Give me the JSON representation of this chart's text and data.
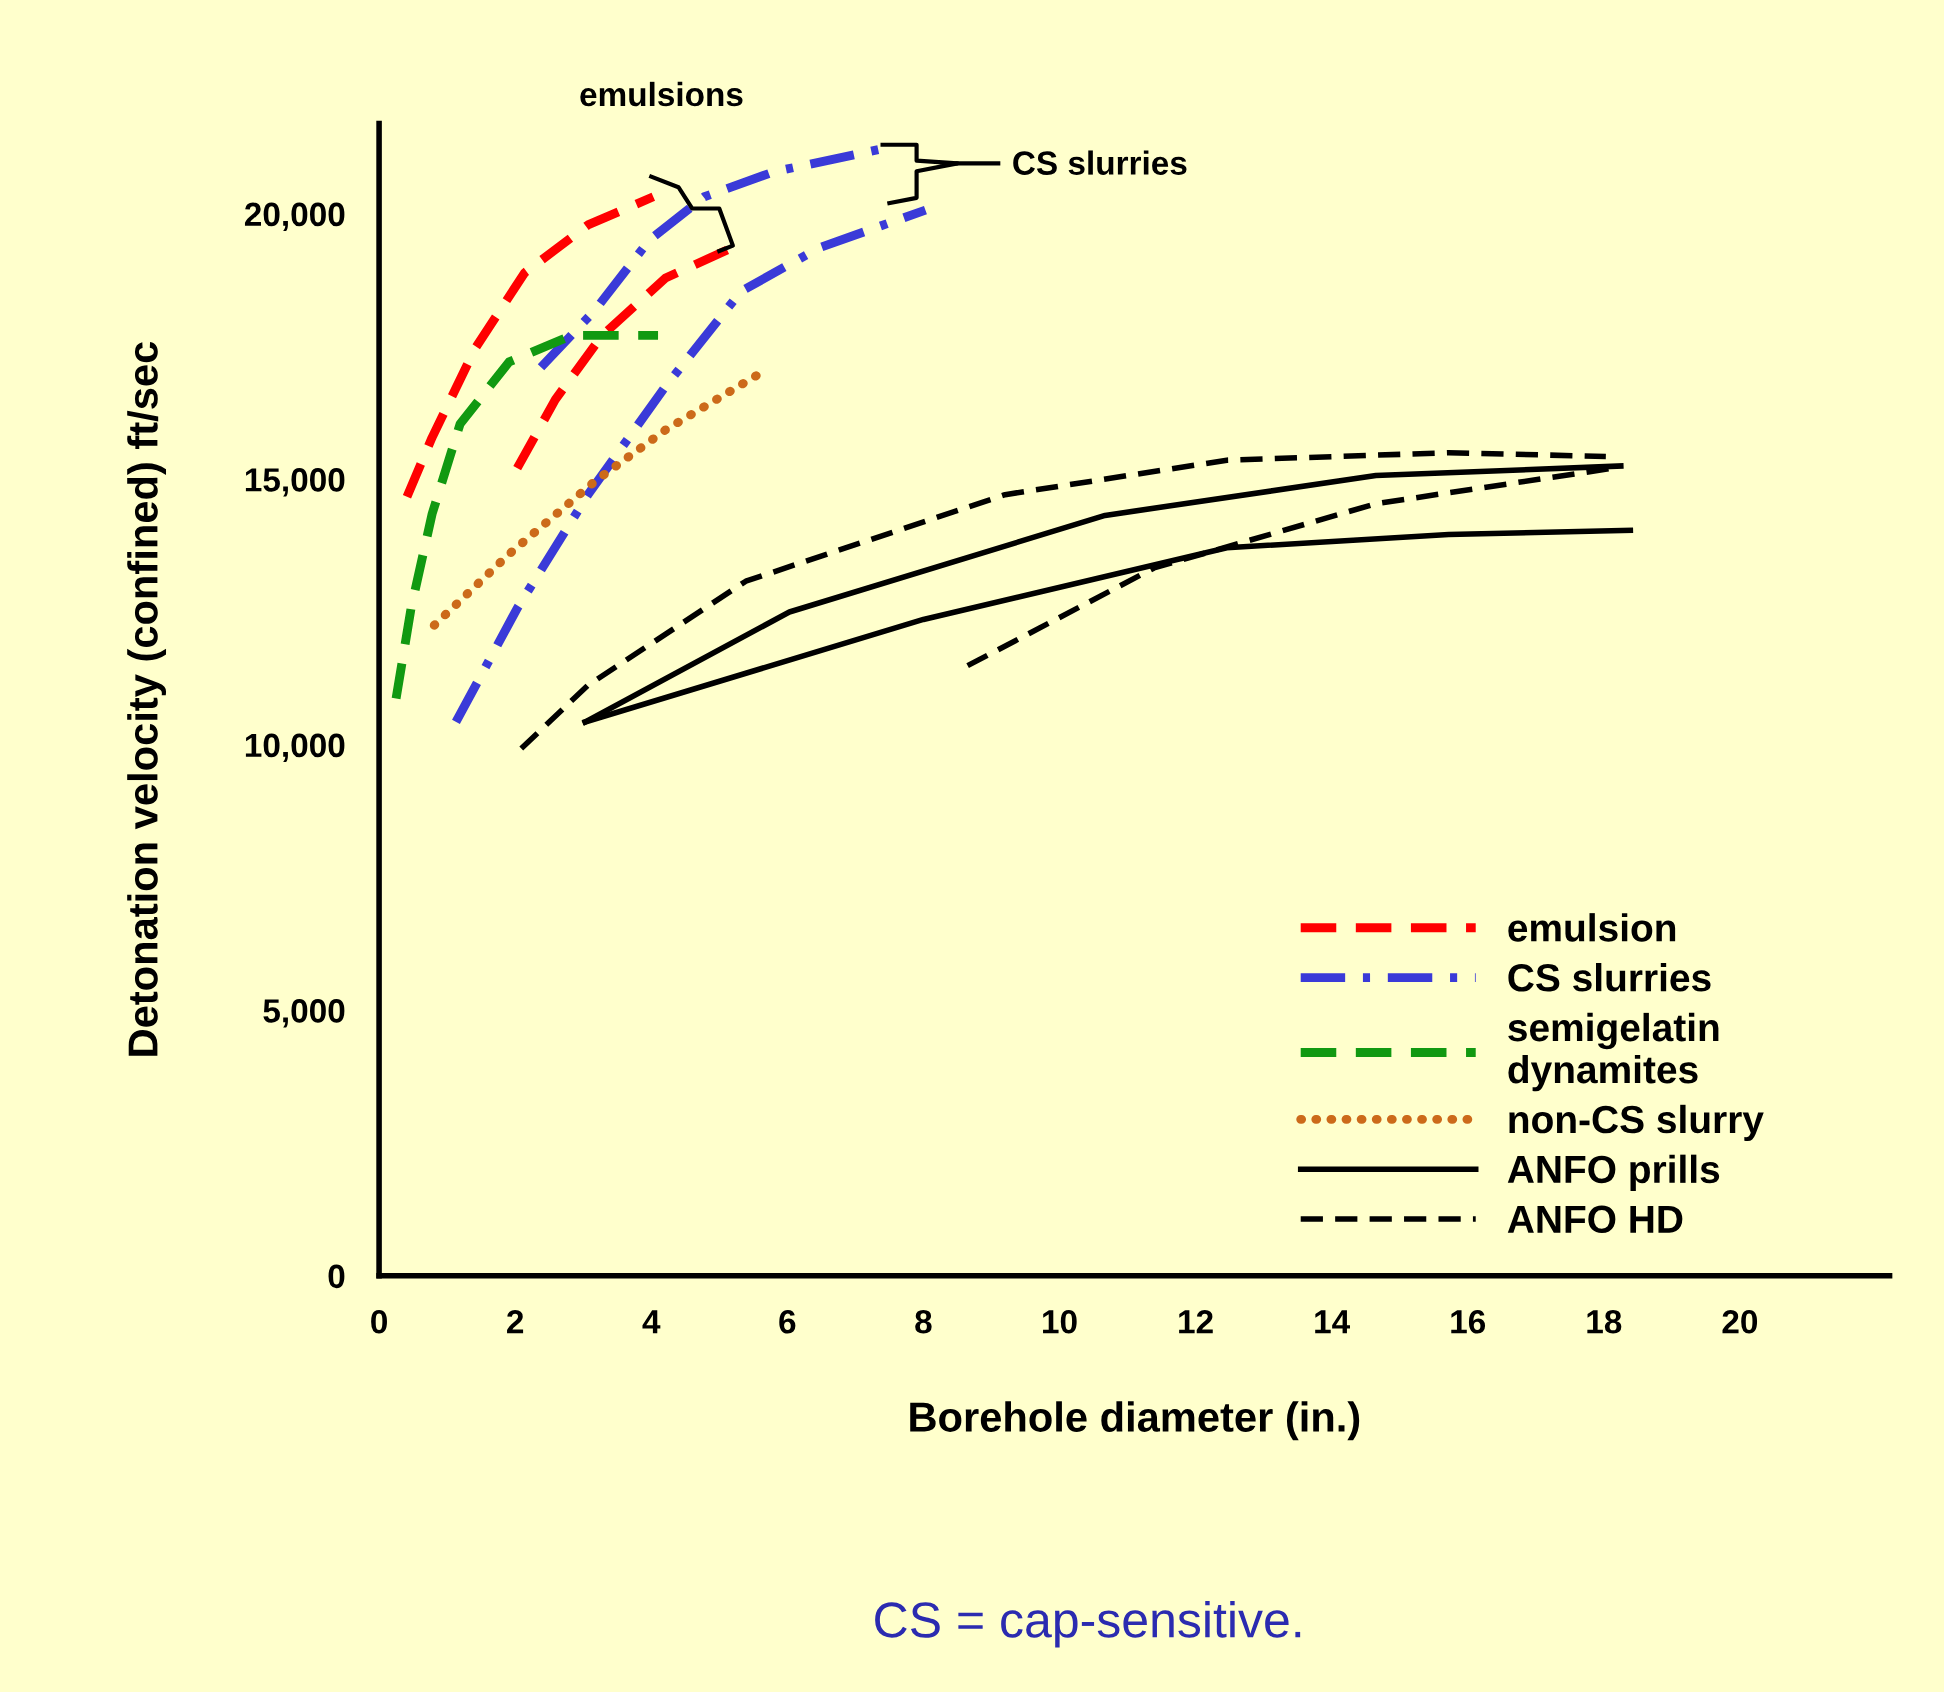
{
  "chart_data": {
    "type": "line",
    "xlabel": "Borehole diameter (in.)",
    "ylabel": "Detonation velocity (confined) ft/sec",
    "xlim": [
      0,
      22.2
    ],
    "ylim": [
      0,
      21700
    ],
    "xticks": [
      0,
      2,
      4,
      6,
      8,
      10,
      12,
      14,
      16,
      18,
      20
    ],
    "yticks": [
      0,
      {
        "value": 5000,
        "label": "5,000"
      },
      {
        "value": 10000,
        "label": "10,000"
      },
      {
        "value": 15000,
        "label": "15,000"
      },
      {
        "value": 20000,
        "label": "20,000"
      }
    ],
    "grid": false,
    "legend": "bottom right",
    "marker": "none",
    "annotations": [
      "emulsions",
      "CS slurries",
      "CS = cap-sensitive."
    ],
    "series": [
      {
        "name": "emulsion",
        "color": "#ff0000",
        "line_style": "dashed",
        "x": [
          0.41,
          0.78,
          1.41,
          2.14,
          3.07,
          4.03
        ],
        "values": [
          14670,
          15790,
          17460,
          18890,
          19790,
          20320
        ]
      },
      {
        "color": "#ff0000",
        "line_style": "dashed",
        "x": [
          2.03,
          2.59,
          3.28,
          4.21,
          5.12
        ],
        "values": [
          15210,
          16500,
          17710,
          18790,
          19320
        ]
      },
      {
        "name": "CS slurries",
        "color": "#3a3ad8",
        "line_style": "dashdot",
        "x": [
          2.38,
          3.17,
          3.97,
          4.78,
          5.8,
          7.38
        ],
        "values": [
          17110,
          18180,
          19500,
          20320,
          20790,
          21220
        ]
      },
      {
        "color": "#3a3ad8",
        "line_style": "dashdot",
        "x": [
          1.13,
          2.03,
          3.07,
          4.21,
          5.32,
          6.47,
          8.03
        ],
        "values": [
          10430,
          12570,
          14710,
          16750,
          18540,
          19360,
          20070
        ]
      },
      {
        "name": "semigelatin\ndynamites",
        "color": "#119911",
        "line_style": "dashed",
        "x": [
          0.25,
          0.47,
          0.78,
          1.19,
          1.91,
          2.83,
          4.1
        ],
        "values": [
          10870,
          12570,
          14350,
          16040,
          17210,
          17710,
          17710
        ]
      },
      {
        "name": "non-CS slurry",
        "color": "#cc6a1a",
        "line_style": "dotted",
        "x": [
          0.81,
          1.91,
          3.17,
          4.21,
          5.66
        ],
        "values": [
          12250,
          13590,
          14960,
          15930,
          17040
        ]
      },
      {
        "name": "ANFO prills",
        "color": "#000000",
        "line_style": "solid",
        "x": [
          3.03,
          6.03,
          10.67,
          14.65,
          18.25
        ],
        "values": [
          10430,
          12500,
          14320,
          15070,
          15250
        ]
      },
      {
        "color": "#000000",
        "line_style": "solid",
        "x": [
          3.03,
          8.0,
          12.46,
          15.72,
          18.39
        ],
        "values": [
          10430,
          12360,
          13710,
          13960,
          14040
        ]
      },
      {
        "name": "ANFO HD",
        "color": "#000000",
        "line_style": "dashed",
        "x": [
          2.09,
          3.07,
          5.39,
          9.2,
          12.46,
          15.72,
          18.03
        ],
        "values": [
          9930,
          11120,
          13080,
          14710,
          15360,
          15500,
          15430
        ]
      },
      {
        "color": "#000000",
        "line_style": "dashed",
        "x": [
          8.65,
          11.39,
          14.65,
          18.14
        ],
        "values": [
          11490,
          13330,
          14540,
          15210
        ]
      }
    ]
  }
}
